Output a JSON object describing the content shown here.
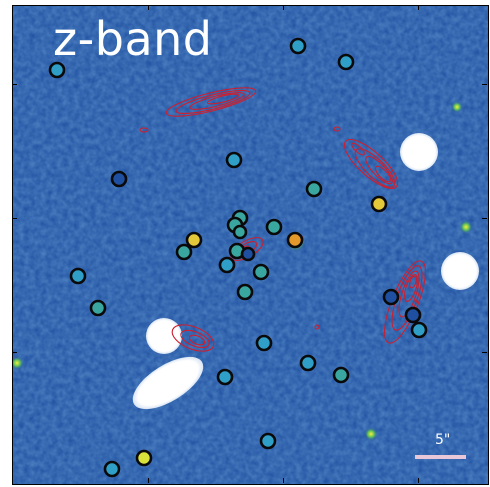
{
  "image": {
    "band_label": "z-band",
    "scale_bar_label": "5\"",
    "colors": {
      "background": "#1f4fa0",
      "contours": "#cc1f2f",
      "marker_stroke": "#0a0a0a",
      "marker_fill": "#2f9fc8",
      "scale_bar": "#e7c7d8",
      "saturated": "#ffffff"
    },
    "markers": {
      "count": 31
    }
  }
}
